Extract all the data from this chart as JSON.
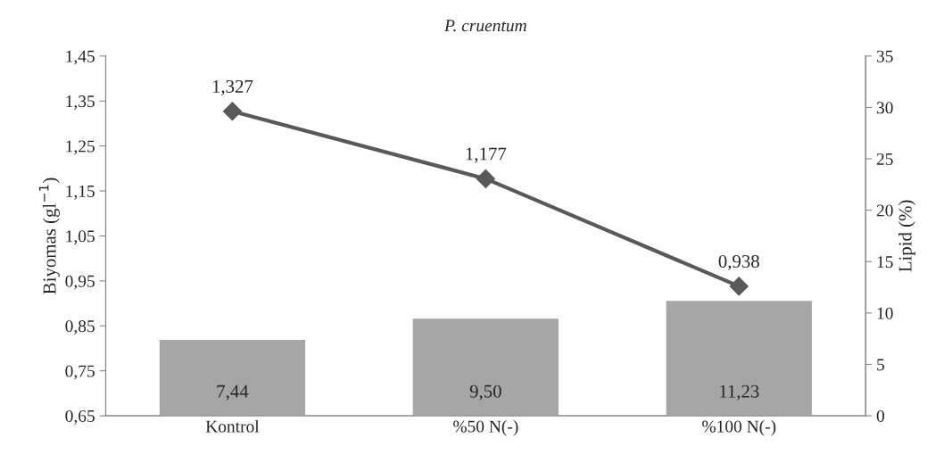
{
  "chart_data": {
    "type": "bar",
    "title": "P. cruentum",
    "ylabel": "Biyomas (gl$^{−1}$)",
    "y2label": "Lipid (%)",
    "categories": [
      "Kontrol",
      "%50 N(-)",
      "%100 N(-)"
    ],
    "series": [
      {
        "axis": "y2",
        "color": "#a6a6a6",
        "values": [
          7.44,
          9.5,
          11.23
        ],
        "value_labels": [
          "7,44",
          "9,50",
          "11,23"
        ]
      },
      {
        "type": "line",
        "color": "#595959",
        "marker": "diamond",
        "line_style": "solid",
        "values": [
          1.327,
          1.177,
          0.938
        ],
        "value_labels": [
          "1,327",
          "1,177",
          "0,938"
        ]
      }
    ],
    "ylim": [
      0.65,
      1.45
    ],
    "yticks": [
      {
        "value": 0.65,
        "label": "0,65"
      },
      {
        "value": 0.75,
        "label": "0,75"
      },
      {
        "value": 0.85,
        "label": "0,85"
      },
      {
        "value": 0.95,
        "label": "0,95"
      },
      {
        "value": 1.05,
        "label": "1,05"
      },
      {
        "value": 1.15,
        "label": "1,15"
      },
      {
        "value": 1.25,
        "label": "1,25"
      },
      {
        "value": 1.35,
        "label": "1,35"
      },
      {
        "value": 1.45,
        "label": "1,45"
      }
    ],
    "y2lim": [
      0,
      35
    ],
    "y2ticks": [
      0,
      5,
      10,
      15,
      20,
      25,
      30,
      35
    ]
  }
}
